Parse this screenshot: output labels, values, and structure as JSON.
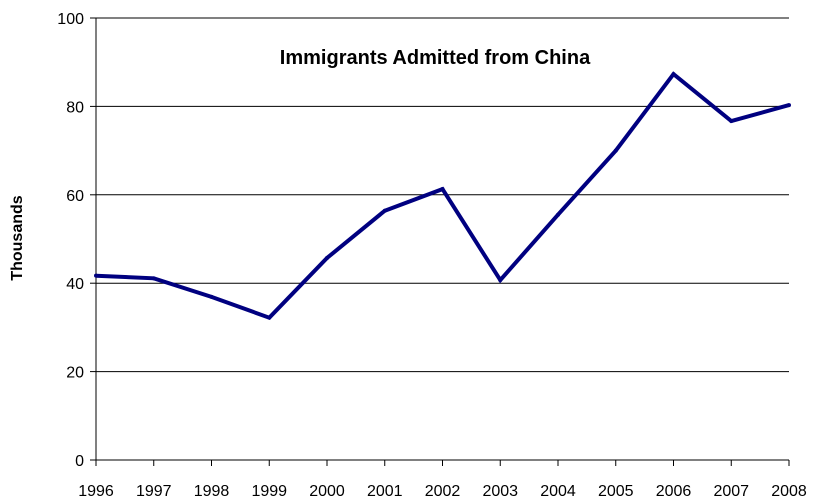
{
  "chart_data": {
    "type": "line",
    "title": "Immigrants Admitted from China",
    "xlabel": "",
    "ylabel": "Thousands",
    "categories": [
      "1996",
      "1997",
      "1998",
      "1999",
      "2000",
      "2001",
      "2002",
      "2003",
      "2004",
      "2005",
      "2006",
      "2007",
      "2008"
    ],
    "series": [
      {
        "values": [
          41.7,
          41.1,
          36.9,
          32.2,
          45.7,
          56.4,
          61.3,
          40.7,
          55.5,
          70.0,
          87.3,
          76.7,
          80.3
        ]
      }
    ],
    "ylim": [
      0,
      100
    ],
    "yticks": [
      0,
      20,
      40,
      60,
      80,
      100
    ],
    "grid": "horizontal",
    "legend": "none",
    "colors": {
      "line": "#000080",
      "grid": "#000000",
      "axis": "#000000"
    }
  }
}
